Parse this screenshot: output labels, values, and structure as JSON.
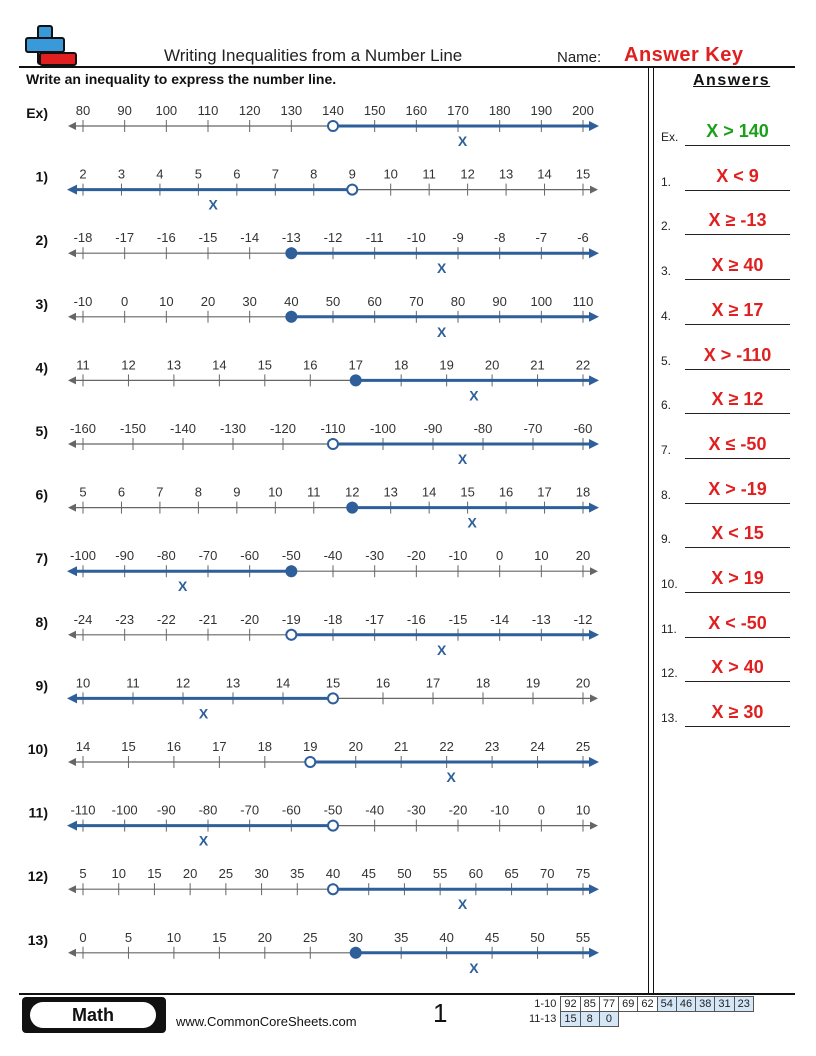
{
  "header": {
    "title": "Writing Inequalities from a Number Line",
    "name_label": "Name:",
    "name_value": "Answer Key",
    "instructions": "Write an inequality to express the number line."
  },
  "colors": {
    "line_blue": "#2e5f9a",
    "answer_red": "#e02020",
    "example_green": "#1aa01a",
    "axis_gray": "#666666"
  },
  "problems": [
    {
      "label": "Ex)",
      "ticks": [
        "80",
        "90",
        "100",
        "110",
        "120",
        "130",
        "140",
        "150",
        "160",
        "170",
        "180",
        "190",
        "200"
      ],
      "point_index": 6,
      "closed": false,
      "direction": "right",
      "variable": "X"
    },
    {
      "label": "1)",
      "ticks": [
        "2",
        "3",
        "4",
        "5",
        "6",
        "7",
        "8",
        "9",
        "10",
        "11",
        "12",
        "13",
        "14",
        "15"
      ],
      "point_index": 7,
      "closed": false,
      "direction": "left",
      "variable": "X"
    },
    {
      "label": "2)",
      "ticks": [
        "-18",
        "-17",
        "-16",
        "-15",
        "-14",
        "-13",
        "-12",
        "-11",
        "-10",
        "-9",
        "-8",
        "-7",
        "-6"
      ],
      "point_index": 5,
      "closed": true,
      "direction": "right",
      "variable": "X"
    },
    {
      "label": "3)",
      "ticks": [
        "-10",
        "0",
        "10",
        "20",
        "30",
        "40",
        "50",
        "60",
        "70",
        "80",
        "90",
        "100",
        "110"
      ],
      "point_index": 5,
      "closed": true,
      "direction": "right",
      "variable": "X"
    },
    {
      "label": "4)",
      "ticks": [
        "11",
        "12",
        "13",
        "14",
        "15",
        "16",
        "17",
        "18",
        "19",
        "20",
        "21",
        "22"
      ],
      "point_index": 6,
      "closed": true,
      "direction": "right",
      "variable": "X"
    },
    {
      "label": "5)",
      "ticks": [
        "-160",
        "-150",
        "-140",
        "-130",
        "-120",
        "-110",
        "-100",
        "-90",
        "-80",
        "-70",
        "-60"
      ],
      "point_index": 5,
      "closed": false,
      "direction": "right",
      "variable": "X"
    },
    {
      "label": "6)",
      "ticks": [
        "5",
        "6",
        "7",
        "8",
        "9",
        "10",
        "11",
        "12",
        "13",
        "14",
        "15",
        "16",
        "17",
        "18"
      ],
      "point_index": 7,
      "closed": true,
      "direction": "right",
      "variable": "X"
    },
    {
      "label": "7)",
      "ticks": [
        "-100",
        "-90",
        "-80",
        "-70",
        "-60",
        "-50",
        "-40",
        "-30",
        "-20",
        "-10",
        "0",
        "10",
        "20"
      ],
      "point_index": 5,
      "closed": true,
      "direction": "left",
      "variable": "X"
    },
    {
      "label": "8)",
      "ticks": [
        "-24",
        "-23",
        "-22",
        "-21",
        "-20",
        "-19",
        "-18",
        "-17",
        "-16",
        "-15",
        "-14",
        "-13",
        "-12"
      ],
      "point_index": 5,
      "closed": false,
      "direction": "right",
      "variable": "X"
    },
    {
      "label": "9)",
      "ticks": [
        "10",
        "11",
        "12",
        "13",
        "14",
        "15",
        "16",
        "17",
        "18",
        "19",
        "20"
      ],
      "point_index": 5,
      "closed": false,
      "direction": "left",
      "variable": "X"
    },
    {
      "label": "10)",
      "ticks": [
        "14",
        "15",
        "16",
        "17",
        "18",
        "19",
        "20",
        "21",
        "22",
        "23",
        "24",
        "25"
      ],
      "point_index": 5,
      "closed": false,
      "direction": "right",
      "variable": "X"
    },
    {
      "label": "11)",
      "ticks": [
        "-110",
        "-100",
        "-90",
        "-80",
        "-70",
        "-60",
        "-50",
        "-40",
        "-30",
        "-20",
        "-10",
        "0",
        "10"
      ],
      "point_index": 6,
      "closed": false,
      "direction": "left",
      "variable": "X"
    },
    {
      "label": "12)",
      "ticks": [
        "5",
        "10",
        "15",
        "20",
        "25",
        "30",
        "35",
        "40",
        "45",
        "50",
        "55",
        "60",
        "65",
        "70",
        "75"
      ],
      "point_index": 7,
      "closed": false,
      "direction": "right",
      "variable": "X"
    },
    {
      "label": "13)",
      "ticks": [
        "0",
        "5",
        "10",
        "15",
        "20",
        "25",
        "30",
        "35",
        "40",
        "45",
        "50",
        "55"
      ],
      "point_index": 6,
      "closed": true,
      "direction": "right",
      "variable": "X"
    }
  ],
  "answers": {
    "title": "Answers",
    "items": [
      {
        "num": "Ex.",
        "value": "X > 140"
      },
      {
        "num": "1.",
        "value": "X < 9"
      },
      {
        "num": "2.",
        "value": "X ≥ -13"
      },
      {
        "num": "3.",
        "value": "X ≥ 40"
      },
      {
        "num": "4.",
        "value": "X ≥ 17"
      },
      {
        "num": "5.",
        "value": "X > -110"
      },
      {
        "num": "6.",
        "value": "X ≥ 12"
      },
      {
        "num": "7.",
        "value": "X ≤ -50"
      },
      {
        "num": "8.",
        "value": "X > -19"
      },
      {
        "num": "9.",
        "value": "X < 15"
      },
      {
        "num": "10.",
        "value": "X > 19"
      },
      {
        "num": "11.",
        "value": "X < -50"
      },
      {
        "num": "12.",
        "value": "X > 40"
      },
      {
        "num": "13.",
        "value": "X ≥ 30"
      }
    ]
  },
  "footer": {
    "subject": "Math",
    "website": "www.CommonCoreSheets.com",
    "page": "1",
    "score_rows": [
      {
        "range": "1-10",
        "scores": [
          "92",
          "85",
          "77",
          "69",
          "62",
          "54",
          "46",
          "38",
          "31",
          "23"
        ]
      },
      {
        "range": "11-13",
        "scores": [
          "15",
          "8",
          "0"
        ]
      }
    ]
  }
}
